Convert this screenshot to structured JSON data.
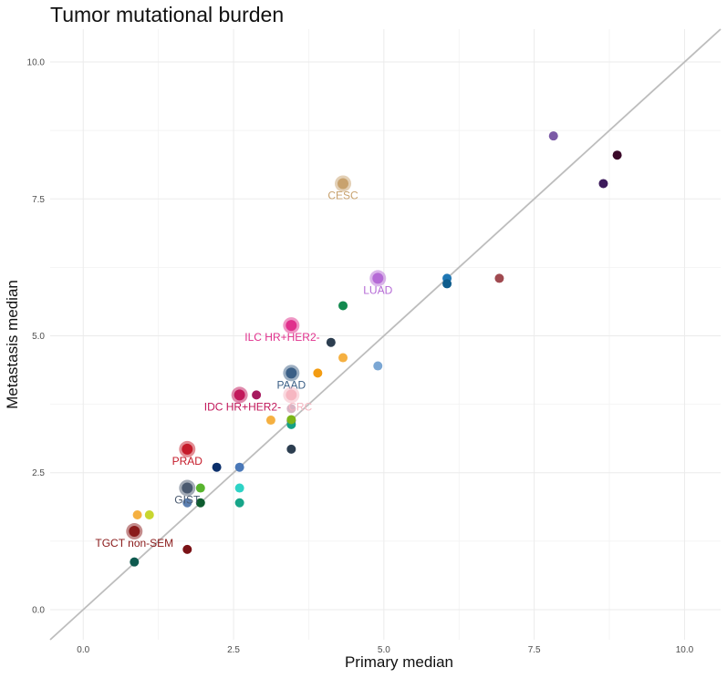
{
  "chart_data": {
    "type": "scatter",
    "title": "Tumor mutational burden",
    "xlabel": "Primary median",
    "ylabel": "Metastasis median",
    "xlim": [
      -0.55,
      10.6
    ],
    "ylim": [
      -0.55,
      10.6
    ],
    "x_ticks": [
      0.0,
      2.5,
      5.0,
      7.5,
      10.0
    ],
    "y_ticks": [
      0.0,
      2.5,
      5.0,
      7.5,
      10.0
    ],
    "x_tick_labels": [
      "0.0",
      "2.5",
      "5.0",
      "7.5",
      "10.0"
    ],
    "y_tick_labels": [
      "0.0",
      "2.5",
      "5.0",
      "7.5",
      "10.0"
    ],
    "grid": true,
    "reference_line": "y = x",
    "legend": "none",
    "points": [
      {
        "x": 7.82,
        "y": 8.65,
        "color": "#7b5aa6"
      },
      {
        "x": 8.88,
        "y": 8.3,
        "color": "#3b0a2a"
      },
      {
        "x": 8.65,
        "y": 7.78,
        "color": "#3c1a5b"
      },
      {
        "x": 6.05,
        "y": 6.05,
        "color": "#1f77b4"
      },
      {
        "x": 6.05,
        "y": 5.95,
        "color": "#0f5c8c"
      },
      {
        "x": 6.92,
        "y": 6.05,
        "color": "#a04a50"
      },
      {
        "x": 4.32,
        "y": 5.55,
        "color": "#138a4f"
      },
      {
        "x": 4.12,
        "y": 4.88,
        "color": "#2c3e50"
      },
      {
        "x": 4.32,
        "y": 4.6,
        "color": "#f5b041"
      },
      {
        "x": 4.9,
        "y": 4.45,
        "color": "#7ba7d4"
      },
      {
        "x": 3.9,
        "y": 4.32,
        "color": "#f39c12"
      },
      {
        "x": 2.88,
        "y": 3.92,
        "color": "#a6195e"
      },
      {
        "x": 3.46,
        "y": 3.67,
        "color": "#d9b4c4"
      },
      {
        "x": 3.46,
        "y": 3.45,
        "color": "#6c3483"
      },
      {
        "x": 3.46,
        "y": 3.38,
        "color": "#16a085"
      },
      {
        "x": 3.46,
        "y": 3.47,
        "color": "#7cb518"
      },
      {
        "x": 3.12,
        "y": 3.46,
        "color": "#f5b041"
      },
      {
        "x": 3.46,
        "y": 2.93,
        "color": "#2c3e50"
      },
      {
        "x": 2.22,
        "y": 2.6,
        "color": "#0b2f6b"
      },
      {
        "x": 2.6,
        "y": 2.6,
        "color": "#4a78b8"
      },
      {
        "x": 2.6,
        "y": 2.22,
        "color": "#2ed3c6"
      },
      {
        "x": 1.95,
        "y": 2.22,
        "color": "#58b42e"
      },
      {
        "x": 1.95,
        "y": 1.95,
        "color": "#0e5c2f"
      },
      {
        "x": 1.73,
        "y": 1.95,
        "color": "#5b7fb0"
      },
      {
        "x": 2.6,
        "y": 1.95,
        "color": "#17a589"
      },
      {
        "x": 0.9,
        "y": 1.73,
        "color": "#f5b041"
      },
      {
        "x": 1.1,
        "y": 1.73,
        "color": "#c8d630"
      },
      {
        "x": 1.73,
        "y": 1.1,
        "color": "#7a1216"
      },
      {
        "x": 0.85,
        "y": 0.87,
        "color": "#0e5a4f"
      }
    ],
    "labeled_points": [
      {
        "x": 4.32,
        "y": 7.78,
        "label": "CESC",
        "color": "#c8a26e",
        "label_dx": 0,
        "label_dy": 1
      },
      {
        "x": 4.9,
        "y": 6.05,
        "label": "LUAD",
        "color": "#b56ad6",
        "label_dx": 0,
        "label_dy": 1
      },
      {
        "x": 3.46,
        "y": 5.19,
        "label": "ILC HR+HER2-",
        "color": "#e0308c",
        "label_dx": -0.15,
        "label_dy": 1
      },
      {
        "x": 3.46,
        "y": 4.32,
        "label": "PAAD",
        "color": "#3b5f86",
        "label_dx": 0,
        "label_dy": 1
      },
      {
        "x": 3.46,
        "y": 3.92,
        "label": "CRC",
        "color": "#f6b6c1",
        "label_dx": 0.15,
        "label_dy": 1
      },
      {
        "x": 2.6,
        "y": 3.92,
        "label": "IDC HR+HER2-",
        "color": "#c2185b",
        "label_dx": 0.05,
        "label_dy": 1
      },
      {
        "x": 1.73,
        "y": 2.93,
        "label": "PRAD",
        "color": "#c51b2a",
        "label_dx": 0,
        "label_dy": 1
      },
      {
        "x": 1.73,
        "y": 2.22,
        "label": "GIST",
        "color": "#4a5a70",
        "label_dx": 0,
        "label_dy": 1
      },
      {
        "x": 0.85,
        "y": 1.43,
        "label": "TGCT non-SEM",
        "color": "#8a1a1a",
        "label_dx": 0,
        "label_dy": 1
      }
    ]
  }
}
